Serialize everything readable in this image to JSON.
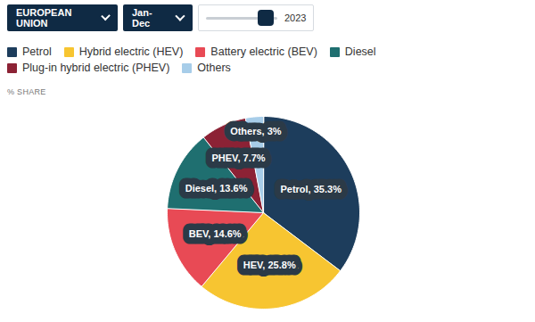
{
  "chart_data": {
    "type": "pie",
    "controls": {
      "region": "EUROPEAN UNION",
      "period": "Jan-Dec",
      "year": "2023"
    },
    "subtitle": "% SHARE",
    "categories": [
      "Petrol",
      "Hybrid electric (HEV)",
      "Battery electric (BEV)",
      "Diesel",
      "Plug-in hybrid electric (PHEV)",
      "Others"
    ],
    "values": [
      35.3,
      25.8,
      14.6,
      13.6,
      7.7,
      3
    ],
    "value_labels": [
      "Petrol, 35.3%",
      "HEV, 25.8%",
      "BEV, 14.6%",
      "Diesel, 13.6%",
      "PHEV, 7.7%",
      "Others, 3%"
    ],
    "colors": [
      "#1d3d5c",
      "#f7c531",
      "#e84a55",
      "#1f6f70",
      "#8c2235",
      "#a7cde9"
    ],
    "data_labels": true,
    "legend": "top"
  }
}
